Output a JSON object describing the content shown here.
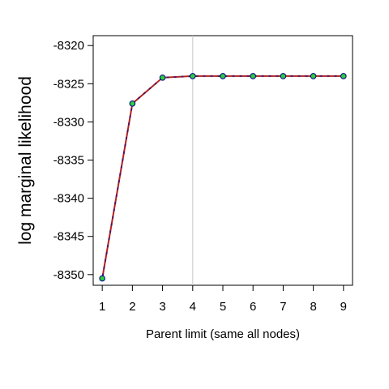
{
  "chart_data": {
    "type": "line",
    "title": "",
    "xlabel": "Parent limit (same all nodes)",
    "ylabel": "log marginal likelihood",
    "x": [
      1,
      2,
      3,
      4,
      5,
      6,
      7,
      8,
      9
    ],
    "series": [
      {
        "values": [
          -8350.5,
          -8327.6,
          -8324.2,
          -8324.0,
          -8324.0,
          -8324.0,
          -8324.0,
          -8324.0,
          -8324.0
        ]
      }
    ],
    "xticks": [
      "1",
      "2",
      "3",
      "4",
      "5",
      "6",
      "7",
      "8",
      "9"
    ],
    "yticks": [
      "-8320",
      "-8325",
      "-8330",
      "-8335",
      "-8340",
      "-8345",
      "-8350"
    ],
    "ytick_values": [
      -8320,
      -8325,
      -8330,
      -8335,
      -8340,
      -8345,
      -8350
    ],
    "xlim": [
      0.7,
      9.3
    ],
    "ylim": [
      -8351.4,
      -8318.7
    ],
    "reference_line_x": 4,
    "grid": false,
    "line_color": "#b22222",
    "line_dash_color": "#00008b",
    "marker_fill": "#2ecc40",
    "marker_edge": "#00008b",
    "reference_line_color": "#c8c8c8"
  }
}
